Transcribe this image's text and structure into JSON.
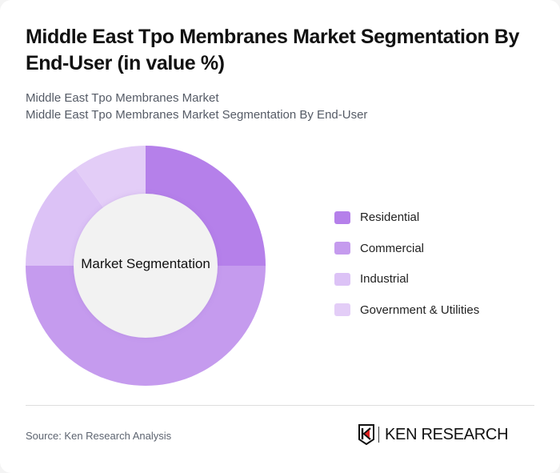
{
  "header": {
    "title": "Middle East Tpo Membranes Market Segmentation By End-User (in value %)",
    "subtitle_line1": "Middle East Tpo Membranes Market",
    "subtitle_line2": "Middle East Tpo Membranes Market Segmentation By End-User"
  },
  "chart": {
    "center_label": "Market Segmentation"
  },
  "legend": {
    "items": [
      {
        "label": "Residential",
        "color": "#b580ea"
      },
      {
        "label": "Commercial",
        "color": "#c59bee"
      },
      {
        "label": "Industrial",
        "color": "#dcc2f6"
      },
      {
        "label": "Government & Utilities",
        "color": "#e3cdf7"
      }
    ]
  },
  "footer": {
    "source": "Source: Ken Research Analysis",
    "logo_text": "KEN RESEARCH"
  },
  "chart_data": {
    "type": "pie",
    "subtype": "donut",
    "title": "Middle East Tpo Membranes Market Segmentation By End-User (in value %)",
    "center_label": "Market Segmentation",
    "categories": [
      "Residential",
      "Commercial",
      "Industrial",
      "Government & Utilities"
    ],
    "values": [
      25,
      50,
      15,
      10
    ],
    "colors": [
      "#b580ea",
      "#c59bee",
      "#dcc2f6",
      "#e3cdf7"
    ],
    "legend_position": "right",
    "unit": "%"
  }
}
